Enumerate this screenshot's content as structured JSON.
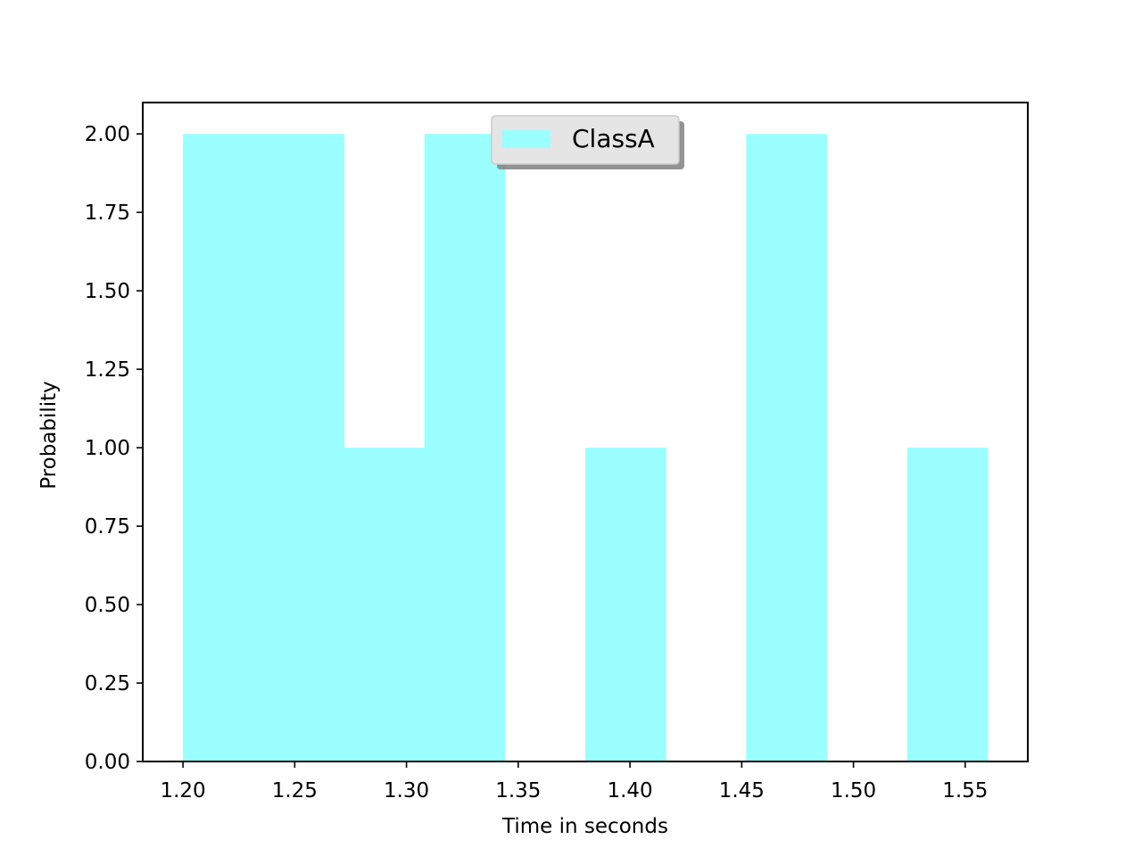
{
  "chart_data": {
    "type": "bar",
    "subtype": "histogram",
    "title": "",
    "xlabel": "Time in seconds",
    "ylabel": "Probability",
    "bins": [
      {
        "start": 1.2,
        "end": 1.236,
        "value": 2
      },
      {
        "start": 1.236,
        "end": 1.272,
        "value": 2
      },
      {
        "start": 1.272,
        "end": 1.308,
        "value": 1
      },
      {
        "start": 1.308,
        "end": 1.344,
        "value": 2
      },
      {
        "start": 1.344,
        "end": 1.38,
        "value": 0
      },
      {
        "start": 1.38,
        "end": 1.416,
        "value": 1
      },
      {
        "start": 1.416,
        "end": 1.452,
        "value": 0
      },
      {
        "start": 1.452,
        "end": 1.488,
        "value": 2
      },
      {
        "start": 1.488,
        "end": 1.524,
        "value": 0
      },
      {
        "start": 1.524,
        "end": 1.56,
        "value": 1
      }
    ],
    "series": [
      {
        "name": "ClassA",
        "color": "#9bffff"
      }
    ],
    "xlim": [
      1.182,
      1.578
    ],
    "ylim": [
      0,
      2.1
    ],
    "xticks": [
      1.2,
      1.25,
      1.3,
      1.35,
      1.4,
      1.45,
      1.5,
      1.55
    ],
    "xtick_labels": [
      "1.20",
      "1.25",
      "1.30",
      "1.35",
      "1.40",
      "1.45",
      "1.50",
      "1.55"
    ],
    "yticks": [
      0,
      0.25,
      0.5,
      0.75,
      1.0,
      1.25,
      1.5,
      1.75,
      2.0
    ],
    "ytick_labels": [
      "0.00",
      "0.25",
      "0.50",
      "0.75",
      "1.00",
      "1.25",
      "1.50",
      "1.75",
      "2.00"
    ],
    "legend": {
      "position": "upper-center",
      "shadow": true,
      "entries": [
        "ClassA"
      ]
    },
    "grid": false
  }
}
